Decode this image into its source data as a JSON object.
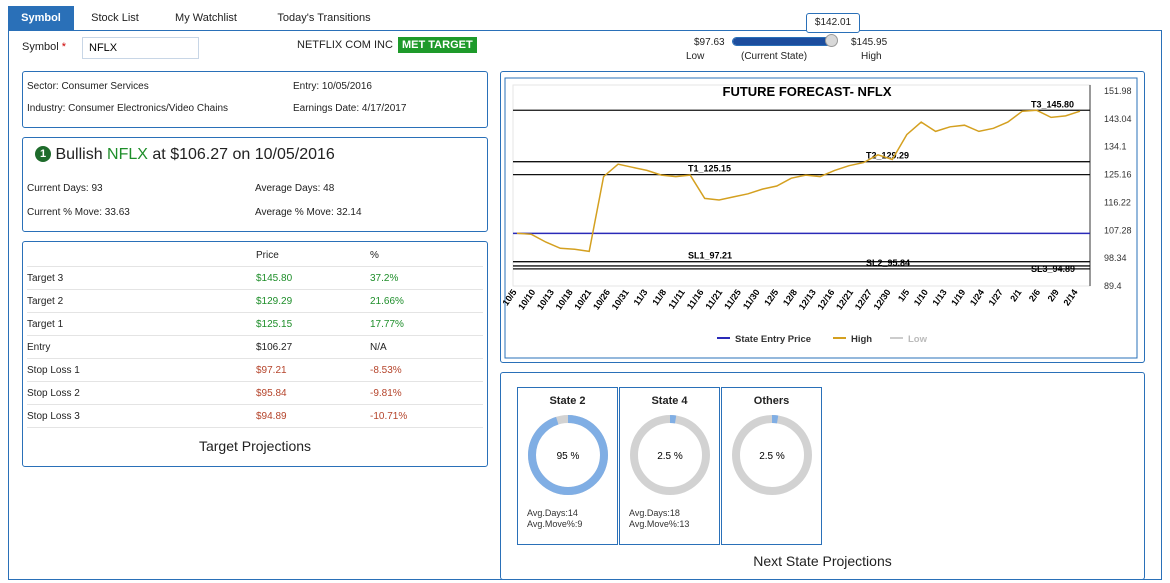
{
  "tabs": [
    {
      "label": "Symbol",
      "active": true
    },
    {
      "label": "Stock List",
      "active": false
    },
    {
      "label": "My Watchlist",
      "active": false
    },
    {
      "label": "Today's Transitions",
      "active": false
    }
  ],
  "symbol": {
    "label": "Symbol",
    "required_mark": "*",
    "value": "NFLX"
  },
  "company_name": "NETFLIX COM INC",
  "status_badge": "MET TARGET",
  "slider": {
    "current_value": "$142.01",
    "low_value": "$97.63",
    "high_value": "$145.95",
    "low_label": "Low",
    "mid_label": "(Current State)",
    "high_label": "High",
    "fill_fraction": 0.96
  },
  "info": {
    "sector": "Sector: Consumer Services",
    "industry": "Industry: Consumer Electronics/Video Chains",
    "entry": "Entry: 10/05/2016",
    "earnings": "Earnings Date: 4/17/2017"
  },
  "state_summary": {
    "badge_number": "1",
    "word": "Bullish",
    "ticker": "NFLX",
    "at": "at",
    "price": "$106.27",
    "on": "on",
    "date": "10/05/2016",
    "current_days": "Current Days: 93",
    "average_days": "Average Days: 48",
    "current_move": "Current % Move: 33.63",
    "average_move": "Average % Move: 32.14"
  },
  "targets": {
    "col_price": "Price",
    "col_pct": "%",
    "title": "Target Projections",
    "rows": [
      {
        "label": "Target 3",
        "price": "$145.80",
        "pct": "37.2%",
        "tone": "green"
      },
      {
        "label": "Target 2",
        "price": "$129.29",
        "pct": "21.66%",
        "tone": "green"
      },
      {
        "label": "Target 1",
        "price": "$125.15",
        "pct": "17.77%",
        "tone": "green"
      },
      {
        "label": "Entry",
        "price": "$106.27",
        "pct": "N/A",
        "tone": "neutral"
      },
      {
        "label": "Stop Loss 1",
        "price": "$97.21",
        "pct": "-8.53%",
        "tone": "red"
      },
      {
        "label": "Stop Loss 2",
        "price": "$95.84",
        "pct": "-9.81%",
        "tone": "red"
      },
      {
        "label": "Stop Loss 3",
        "price": "$94.89",
        "pct": "-10.71%",
        "tone": "red"
      }
    ]
  },
  "chart_data": {
    "type": "line",
    "title": "FUTURE FORECAST- NFLX",
    "ylim": [
      89.4,
      151.98
    ],
    "y_ticks": [
      "151.98",
      "143.04",
      "134.1",
      "125.16",
      "116.22",
      "107.28",
      "98.34",
      "89.4"
    ],
    "x_ticks": [
      "10/5",
      "10/10",
      "10/13",
      "10/18",
      "10/21",
      "10/26",
      "10/31",
      "11/3",
      "11/8",
      "11/11",
      "11/16",
      "11/21",
      "11/25",
      "11/30",
      "12/5",
      "12/8",
      "12/13",
      "12/16",
      "12/21",
      "12/27",
      "12/30",
      "1/5",
      "1/10",
      "1/13",
      "1/19",
      "1/24",
      "1/27",
      "2/1",
      "2/6",
      "2/9",
      "2/14"
    ],
    "legend": [
      "State Entry Price",
      "High",
      "Low"
    ],
    "legend_position": "bottom",
    "colors": {
      "entry": "#2a2ab8",
      "high": "#d4a020",
      "low": "#cccccc",
      "levels": "#111111"
    },
    "entry_price": 106.27,
    "levels": [
      {
        "label": "T3_145.80",
        "value": 145.8
      },
      {
        "label": "T2_129.29",
        "value": 129.29
      },
      {
        "label": "T1_125.15",
        "value": 125.15
      },
      {
        "label": "SL1_97.21",
        "value": 97.21
      },
      {
        "label": "SL2_95.84",
        "value": 95.84
      },
      {
        "label": "SL3_94.89",
        "value": 94.89
      }
    ],
    "series": [
      {
        "name": "High",
        "values": [
          106.3,
          106.0,
          103.5,
          101.5,
          101.2,
          100.5,
          124.5,
          128.5,
          127.5,
          126.5,
          125.0,
          124.5,
          125.0,
          117.5,
          117.0,
          118.0,
          119.0,
          120.5,
          121.5,
          124.0,
          125.0,
          124.5,
          126.5,
          128.0,
          129.0,
          131.5,
          130.0,
          138.0,
          142.0,
          139.0,
          140.5,
          141.0,
          139.0,
          140.0,
          142.0,
          145.5,
          145.8,
          143.5,
          144.0,
          145.5
        ]
      }
    ]
  },
  "next_states": {
    "title": "Next State Projections",
    "cards": [
      {
        "title": "State 2",
        "pct_label": "95 %",
        "pct": 0.95,
        "avg_days": "Avg.Days:14",
        "avg_move": "Avg.Move%:9"
      },
      {
        "title": "State 4",
        "pct_label": "2.5 %",
        "pct": 0.025,
        "avg_days": "Avg.Days:18",
        "avg_move": "Avg.Move%:13"
      },
      {
        "title": "Others",
        "pct_label": "2.5 %",
        "pct": 0.025,
        "avg_days": "",
        "avg_move": ""
      }
    ]
  }
}
